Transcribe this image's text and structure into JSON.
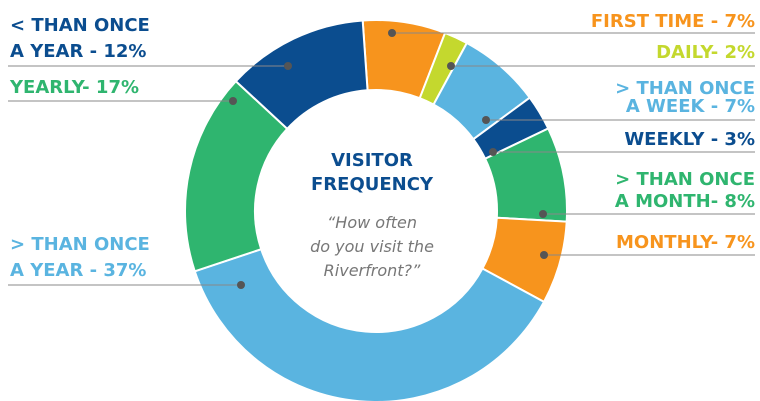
{
  "chart_data": {
    "type": "pie",
    "title": [
      "VISITOR",
      "FREQUENCY"
    ],
    "subtitle": [
      "“How often",
      "do you visit the",
      "Riverfront?”"
    ],
    "values": [
      7,
      2,
      7,
      3,
      8,
      7,
      37,
      17,
      12
    ],
    "value_labels": [
      [
        "FIRST TIME - 7%"
      ],
      [
        "DAILY- 2%"
      ],
      [
        "> THAN ONCE",
        "A WEEK - 7%"
      ],
      [
        "WEEKLY - 3%"
      ],
      [
        "> THAN ONCE",
        "A MONTH- 8%"
      ],
      [
        "MONTHLY- 7%"
      ],
      [
        "> THAN ONCE",
        "A YEAR - 37%"
      ],
      [
        "YEARLY- 17%"
      ],
      [
        "< THAN ONCE",
        "A YEAR - 12%"
      ]
    ],
    "colors": [
      "#f7941d",
      "#c4d82e",
      "#5ab4e0",
      "#0b4d8f",
      "#2fb56f",
      "#f7941d",
      "#5ab4e0",
      "#2fb56f",
      "#0b4d8f"
    ]
  }
}
